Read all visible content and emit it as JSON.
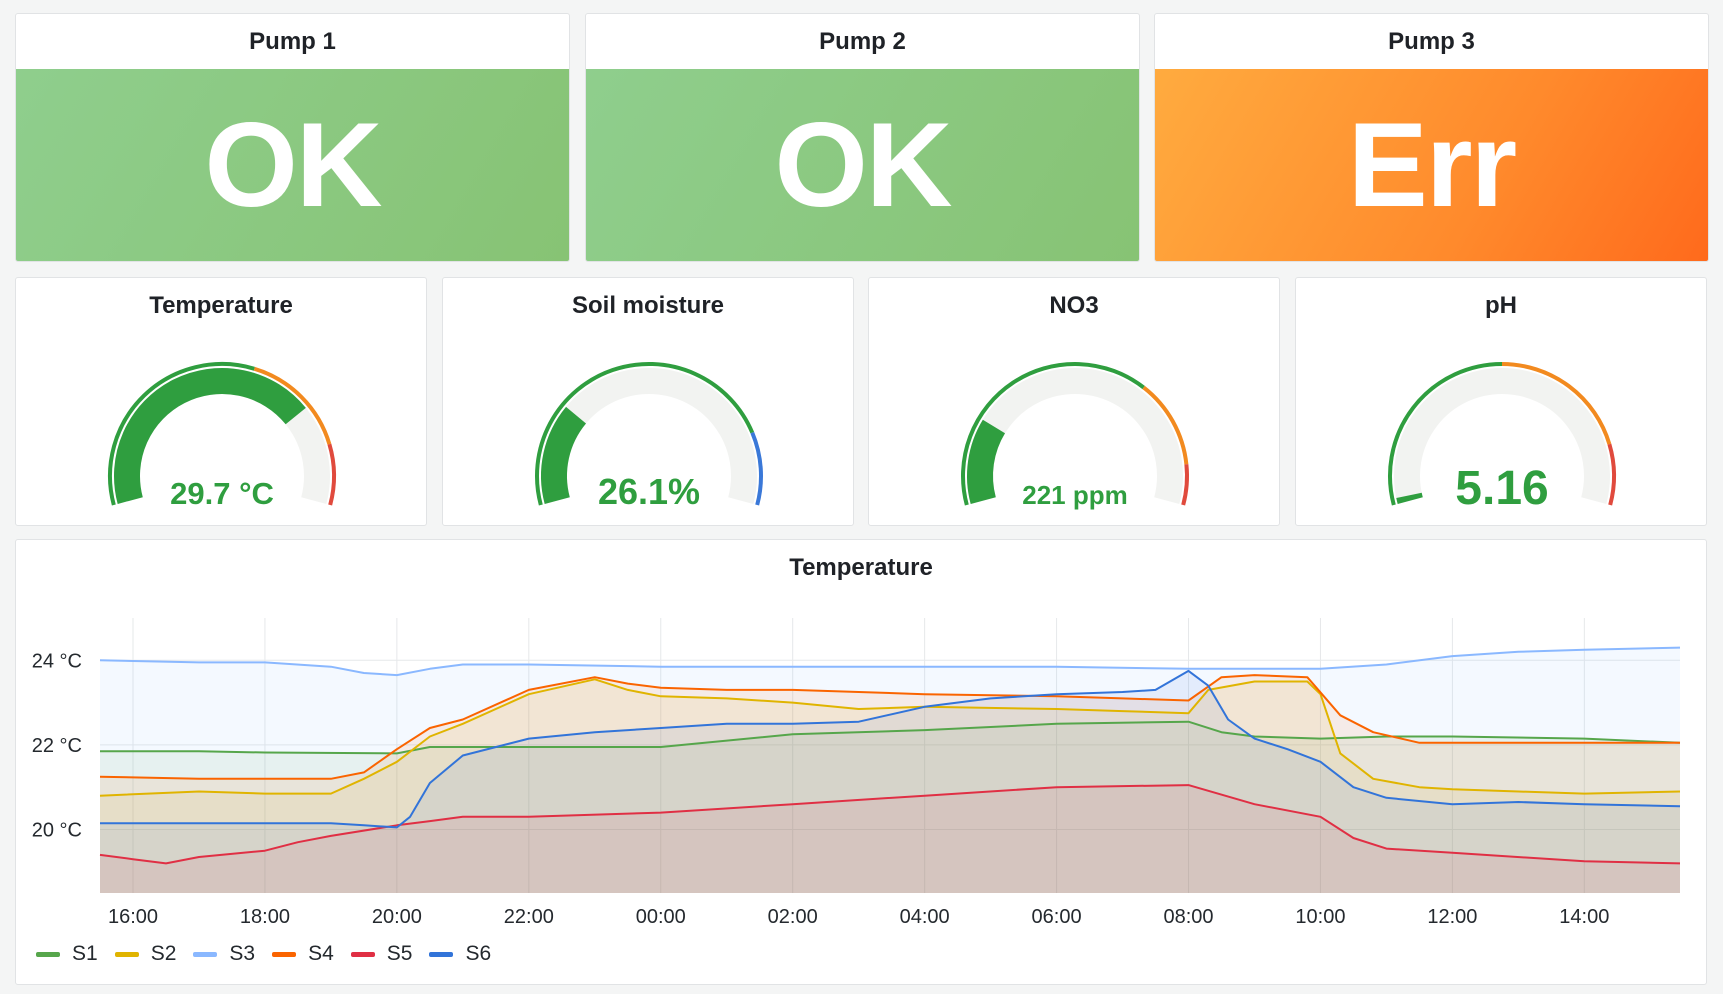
{
  "colors": {
    "ok_bg": "#8fce8d",
    "err_bg": "#ff8a2c",
    "gauge_green": "#2f9e3f",
    "gauge_track": "#f2f3f1",
    "orange": "#f28a1f",
    "red": "#e04a3d",
    "blue": "#3a78d8"
  },
  "pumps": [
    {
      "title": "Pump 1",
      "value": "OK",
      "state": "ok"
    },
    {
      "title": "Pump 2",
      "value": "OK",
      "state": "ok"
    },
    {
      "title": "Pump 3",
      "value": "Err",
      "state": "err"
    }
  ],
  "gauges": [
    {
      "title": "Temperature",
      "value_text": "29.7 °C",
      "value": 29.7,
      "min": 0,
      "max": 40,
      "thresholds": [
        {
          "to": 0.58,
          "color": "#2f9e3f"
        },
        {
          "to": 0.85,
          "color": "#f28a1f"
        },
        {
          "to": 1,
          "color": "#e04a3d"
        }
      ]
    },
    {
      "title": "Soil moisture",
      "value_text": "26.1%",
      "value": 26.1,
      "min": 0,
      "max": 100,
      "thresholds": [
        {
          "to": 0.82,
          "color": "#2f9e3f"
        },
        {
          "to": 1,
          "color": "#3a78d8"
        }
      ]
    },
    {
      "title": "NO3",
      "value_text": "221 ppm",
      "value": 221,
      "min": 0,
      "max": 1000,
      "thresholds": [
        {
          "to": 0.68,
          "color": "#2f9e3f"
        },
        {
          "to": 0.9,
          "color": "#f28a1f"
        },
        {
          "to": 1,
          "color": "#e04a3d"
        }
      ]
    },
    {
      "title": "pH",
      "value_text": "5.16",
      "value": 5.16,
      "min": 5.1,
      "max": 9,
      "thresholds": [
        {
          "to": 0.5,
          "color": "#2f9e3f"
        },
        {
          "to": 0.85,
          "color": "#f28a1f"
        },
        {
          "to": 1,
          "color": "#e04a3d"
        }
      ]
    }
  ],
  "chart": {
    "title": "Temperature",
    "chart_data": {
      "type": "line",
      "ylim": [
        18.5,
        25
      ],
      "xlim_hours": [
        15.5,
        39.45
      ],
      "y_ticks": [
        {
          "v": 20,
          "label": "20 °C"
        },
        {
          "v": 22,
          "label": "22 °C"
        },
        {
          "v": 24,
          "label": "24 °C"
        }
      ],
      "x_ticks": [
        {
          "h": 16,
          "label": "16:00"
        },
        {
          "h": 18,
          "label": "18:00"
        },
        {
          "h": 20,
          "label": "20:00"
        },
        {
          "h": 22,
          "label": "22:00"
        },
        {
          "h": 24,
          "label": "00:00"
        },
        {
          "h": 26,
          "label": "02:00"
        },
        {
          "h": 28,
          "label": "04:00"
        },
        {
          "h": 30,
          "label": "06:00"
        },
        {
          "h": 32,
          "label": "08:00"
        },
        {
          "h": 34,
          "label": "10:00"
        },
        {
          "h": 36,
          "label": "12:00"
        },
        {
          "h": 38,
          "label": "14:00"
        }
      ],
      "series": [
        {
          "name": "S1",
          "color": "#56a64b",
          "points": [
            [
              15.5,
              21.85
            ],
            [
              17,
              21.85
            ],
            [
              18,
              21.82
            ],
            [
              20,
              21.8
            ],
            [
              20.5,
              21.95
            ],
            [
              22,
              21.95
            ],
            [
              24,
              21.95
            ],
            [
              26,
              22.25
            ],
            [
              28,
              22.35
            ],
            [
              30,
              22.5
            ],
            [
              32,
              22.55
            ],
            [
              32.5,
              22.3
            ],
            [
              33,
              22.2
            ],
            [
              34,
              22.15
            ],
            [
              35,
              22.2
            ],
            [
              36,
              22.2
            ],
            [
              38,
              22.15
            ],
            [
              39.45,
              22.05
            ]
          ]
        },
        {
          "name": "S2",
          "color": "#e0b400",
          "points": [
            [
              15.5,
              20.8
            ],
            [
              17,
              20.9
            ],
            [
              18,
              20.85
            ],
            [
              19,
              20.85
            ],
            [
              19.5,
              21.2
            ],
            [
              20,
              21.6
            ],
            [
              20.5,
              22.2
            ],
            [
              21,
              22.5
            ],
            [
              22,
              23.2
            ],
            [
              23,
              23.55
            ],
            [
              23.5,
              23.3
            ],
            [
              24,
              23.15
            ],
            [
              25,
              23.1
            ],
            [
              26,
              23.0
            ],
            [
              27,
              22.85
            ],
            [
              28,
              22.9
            ],
            [
              30,
              22.85
            ],
            [
              31,
              22.8
            ],
            [
              32,
              22.75
            ],
            [
              32.3,
              23.3
            ],
            [
              33,
              23.5
            ],
            [
              33.8,
              23.5
            ],
            [
              34,
              23.2
            ],
            [
              34.3,
              21.8
            ],
            [
              34.8,
              21.2
            ],
            [
              35.5,
              21.0
            ],
            [
              36,
              20.95
            ],
            [
              37,
              20.9
            ],
            [
              38,
              20.85
            ],
            [
              39.45,
              20.9
            ]
          ]
        },
        {
          "name": "S3",
          "color": "#8ab8ff",
          "points": [
            [
              15.5,
              24.0
            ],
            [
              17,
              23.95
            ],
            [
              18,
              23.95
            ],
            [
              19,
              23.85
            ],
            [
              19.5,
              23.7
            ],
            [
              20,
              23.65
            ],
            [
              20.5,
              23.8
            ],
            [
              21,
              23.9
            ],
            [
              22,
              23.9
            ],
            [
              24,
              23.85
            ],
            [
              26,
              23.85
            ],
            [
              28,
              23.85
            ],
            [
              30,
              23.85
            ],
            [
              32,
              23.8
            ],
            [
              34,
              23.8
            ],
            [
              35,
              23.9
            ],
            [
              36,
              24.1
            ],
            [
              37,
              24.2
            ],
            [
              38,
              24.25
            ],
            [
              39.45,
              24.3
            ]
          ]
        },
        {
          "name": "S4",
          "color": "#fa6400",
          "points": [
            [
              15.5,
              21.25
            ],
            [
              17,
              21.2
            ],
            [
              18,
              21.2
            ],
            [
              19,
              21.2
            ],
            [
              19.5,
              21.35
            ],
            [
              20,
              21.9
            ],
            [
              20.5,
              22.4
            ],
            [
              21,
              22.6
            ],
            [
              22,
              23.3
            ],
            [
              23,
              23.6
            ],
            [
              23.5,
              23.45
            ],
            [
              24,
              23.35
            ],
            [
              25,
              23.3
            ],
            [
              26,
              23.3
            ],
            [
              27,
              23.25
            ],
            [
              28,
              23.2
            ],
            [
              30,
              23.15
            ],
            [
              31,
              23.1
            ],
            [
              32,
              23.05
            ],
            [
              32.5,
              23.6
            ],
            [
              33,
              23.65
            ],
            [
              33.8,
              23.6
            ],
            [
              34.3,
              22.7
            ],
            [
              34.8,
              22.3
            ],
            [
              35.5,
              22.05
            ],
            [
              36,
              22.05
            ],
            [
              38,
              22.05
            ],
            [
              39.45,
              22.05
            ]
          ]
        },
        {
          "name": "S5",
          "color": "#e02f44",
          "points": [
            [
              15.5,
              19.4
            ],
            [
              16,
              19.3
            ],
            [
              16.5,
              19.2
            ],
            [
              17,
              19.35
            ],
            [
              18,
              19.5
            ],
            [
              18.5,
              19.7
            ],
            [
              19,
              19.85
            ],
            [
              20,
              20.1
            ],
            [
              20.5,
              20.2
            ],
            [
              21,
              20.3
            ],
            [
              22,
              20.3
            ],
            [
              24,
              20.4
            ],
            [
              26,
              20.6
            ],
            [
              28,
              20.8
            ],
            [
              30,
              21.0
            ],
            [
              32,
              21.05
            ],
            [
              33,
              20.6
            ],
            [
              34,
              20.3
            ],
            [
              34.5,
              19.8
            ],
            [
              35,
              19.55
            ],
            [
              36,
              19.45
            ],
            [
              38,
              19.25
            ],
            [
              39.45,
              19.2
            ]
          ]
        },
        {
          "name": "S6",
          "color": "#3274d9",
          "points": [
            [
              15.5,
              20.15
            ],
            [
              17,
              20.15
            ],
            [
              18,
              20.15
            ],
            [
              19,
              20.15
            ],
            [
              19.5,
              20.1
            ],
            [
              20,
              20.05
            ],
            [
              20.2,
              20.3
            ],
            [
              20.5,
              21.1
            ],
            [
              21,
              21.75
            ],
            [
              22,
              22.15
            ],
            [
              23,
              22.3
            ],
            [
              24,
              22.4
            ],
            [
              25,
              22.5
            ],
            [
              26,
              22.5
            ],
            [
              27,
              22.55
            ],
            [
              28,
              22.9
            ],
            [
              29,
              23.1
            ],
            [
              30,
              23.2
            ],
            [
              31,
              23.25
            ],
            [
              31.5,
              23.3
            ],
            [
              32,
              23.75
            ],
            [
              32.3,
              23.4
            ],
            [
              32.6,
              22.6
            ],
            [
              33,
              22.15
            ],
            [
              33.5,
              21.9
            ],
            [
              34,
              21.6
            ],
            [
              34.5,
              21.0
            ],
            [
              35,
              20.75
            ],
            [
              36,
              20.6
            ],
            [
              37,
              20.65
            ],
            [
              38,
              20.6
            ],
            [
              39.45,
              20.55
            ]
          ]
        }
      ]
    }
  }
}
